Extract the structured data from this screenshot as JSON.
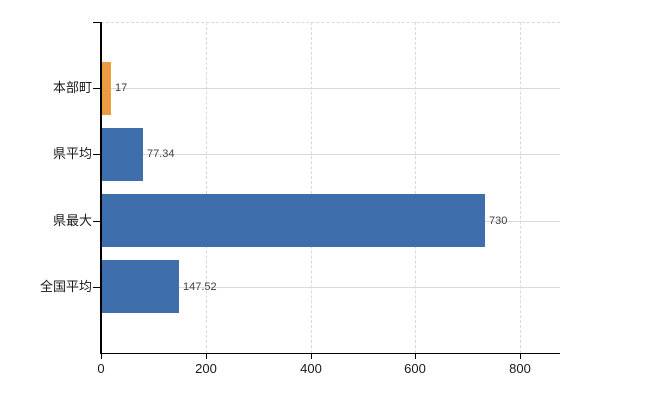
{
  "chart_data": {
    "type": "bar",
    "orientation": "horizontal",
    "title": "",
    "xlabel": "",
    "ylabel": "",
    "categories": [
      "本部町",
      "県平均",
      "県最大",
      "全国平均"
    ],
    "values": [
      17,
      77.34,
      730,
      147.52
    ],
    "value_labels": [
      "17",
      "77.34",
      "730",
      "147.52"
    ],
    "bar_colors": [
      "#ED9B40",
      "#3F6EAC",
      "#3F6EAC",
      "#3F6EAC"
    ],
    "x_ticks": [
      0,
      200,
      400,
      600,
      800
    ],
    "x_tick_labels": [
      "0",
      "200",
      "400",
      "600",
      "800"
    ],
    "xlim": [
      0,
      876
    ],
    "grid": true,
    "legend_position": "none",
    "colors": {
      "bar_orange": "#ED9B40",
      "bar_blue": "#3F6EAC",
      "gridline": "#D9D9D9",
      "axis": "#000000",
      "value_label_text": "#404040",
      "tick_label_text": "#1A1A1A",
      "background": "#FFFFFF"
    }
  }
}
